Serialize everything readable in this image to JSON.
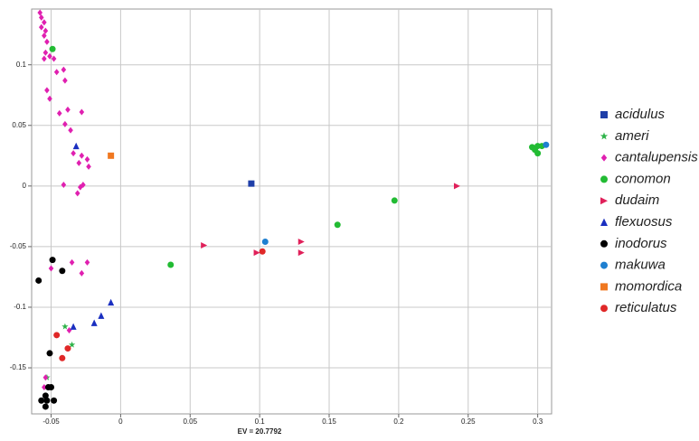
{
  "chart_data": {
    "type": "scatter",
    "xlabel": "EV = 20.7792",
    "xlim": [
      -0.064,
      0.31
    ],
    "ylim": [
      -0.188,
      0.146
    ],
    "xticks": [
      -0.05,
      0,
      0.05,
      0.1,
      0.15,
      0.2,
      0.25,
      0.3
    ],
    "yticks": [
      0.1,
      0.05,
      0,
      -0.05,
      -0.1,
      -0.15
    ],
    "grid": true,
    "legend": "right",
    "series": [
      {
        "name": "acidulus",
        "color": "#1f3fa8",
        "marker": "square",
        "x": [
          0.094
        ],
        "values": [
          0.002
        ]
      },
      {
        "name": "ameri",
        "color": "#2fb34a",
        "marker": "star",
        "x": [
          -0.04,
          -0.035,
          -0.053
        ],
        "values": [
          -0.116,
          -0.131,
          -0.158
        ]
      },
      {
        "name": "cantalupensis",
        "color": "#e020b0",
        "marker": "diamond",
        "x": [
          -0.058,
          -0.057,
          -0.055,
          -0.057,
          -0.054,
          -0.055,
          -0.053,
          -0.054,
          -0.051,
          -0.055,
          -0.048,
          -0.046,
          -0.041,
          -0.04,
          -0.053,
          -0.051,
          -0.044,
          -0.038,
          -0.028,
          -0.04,
          -0.036,
          -0.034,
          -0.028,
          -0.024,
          -0.03,
          -0.023,
          -0.041,
          -0.029,
          -0.027,
          -0.031,
          -0.05,
          -0.035,
          -0.024,
          -0.028,
          -0.037,
          -0.054,
          -0.055
        ],
        "values": [
          0.143,
          0.139,
          0.135,
          0.131,
          0.128,
          0.124,
          0.119,
          0.11,
          0.107,
          0.105,
          0.105,
          0.094,
          0.096,
          0.087,
          0.079,
          0.072,
          0.06,
          0.063,
          0.061,
          0.051,
          0.046,
          0.027,
          0.025,
          0.022,
          0.019,
          0.016,
          0.001,
          -0.001,
          0.001,
          -0.006,
          -0.068,
          -0.063,
          -0.063,
          -0.072,
          -0.119,
          -0.158,
          -0.166
        ]
      },
      {
        "name": "conomon",
        "color": "#22bb33",
        "marker": "circle",
        "x": [
          -0.049,
          0.036,
          0.156,
          0.197,
          0.296,
          0.3,
          0.303,
          0.3,
          0.298
        ],
        "values": [
          0.113,
          -0.065,
          -0.032,
          -0.012,
          0.032,
          0.033,
          0.033,
          0.027,
          0.03
        ]
      },
      {
        "name": "dudaim",
        "color": "#e0205a",
        "marker": "triangle-right",
        "x": [
          0.242,
          0.06,
          0.13,
          0.13,
          0.098
        ],
        "values": [
          0.0,
          -0.049,
          -0.046,
          -0.055,
          -0.055
        ]
      },
      {
        "name": "flexuosus",
        "color": "#1a2fc0",
        "marker": "triangle-up",
        "x": [
          -0.032,
          -0.007,
          -0.014,
          -0.019,
          -0.034
        ],
        "values": [
          0.033,
          -0.096,
          -0.107,
          -0.113,
          -0.116
        ]
      },
      {
        "name": "inodorus",
        "color": "#000000",
        "marker": "circle",
        "x": [
          -0.059,
          -0.049,
          -0.042,
          -0.051,
          -0.052,
          -0.05,
          -0.054,
          -0.057,
          -0.053,
          -0.048,
          -0.054
        ],
        "values": [
          -0.078,
          -0.061,
          -0.07,
          -0.138,
          -0.166,
          -0.166,
          -0.173,
          -0.177,
          -0.177,
          -0.177,
          -0.182
        ]
      },
      {
        "name": "makuwa",
        "color": "#1e7fd0",
        "marker": "circle",
        "x": [
          0.104,
          0.306
        ],
        "values": [
          -0.046,
          0.034
        ]
      },
      {
        "name": "momordica",
        "color": "#f07820",
        "marker": "square",
        "x": [
          -0.007
        ],
        "values": [
          0.025
        ]
      },
      {
        "name": "reticulatus",
        "color": "#e02828",
        "marker": "circle",
        "x": [
          0.102,
          -0.046,
          -0.038,
          -0.042
        ],
        "values": [
          -0.054,
          -0.123,
          -0.134,
          -0.142
        ]
      }
    ]
  }
}
